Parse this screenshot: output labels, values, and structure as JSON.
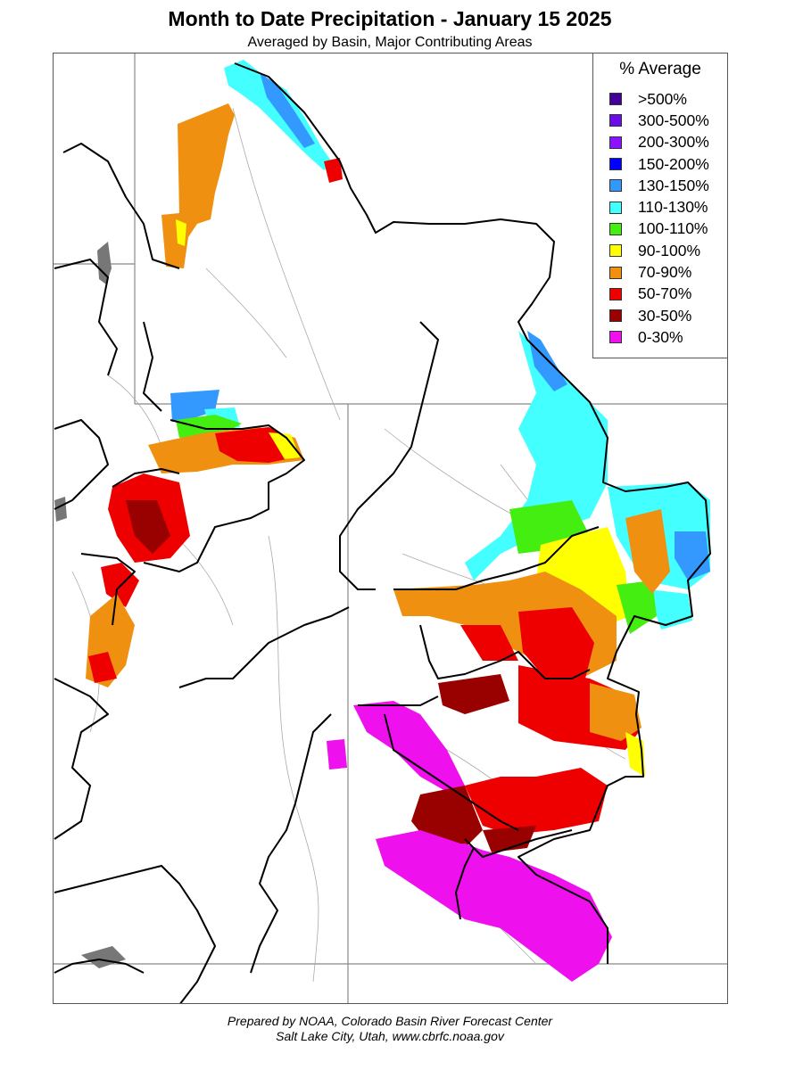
{
  "title": "Month to Date Precipitation - January 15 2025",
  "subtitle": "Averaged by Basin, Major Contributing Areas",
  "legend": {
    "title": "% Average",
    "items": [
      {
        "label": ">500%",
        "color": "#440099"
      },
      {
        "label": "300-500%",
        "color": "#6a0ee8"
      },
      {
        "label": "200-300%",
        "color": "#8a12ff"
      },
      {
        "label": "150-200%",
        "color": "#0000ff"
      },
      {
        "label": "130-150%",
        "color": "#3399ff"
      },
      {
        "label": "110-130%",
        "color": "#44ffff"
      },
      {
        "label": "100-110%",
        "color": "#44ee11"
      },
      {
        "label": "90-100%",
        "color": "#ffff00"
      },
      {
        "label": "70-90%",
        "color": "#f09010"
      },
      {
        "label": "50-70%",
        "color": "#ee0000"
      },
      {
        "label": "30-50%",
        "color": "#990000"
      },
      {
        "label": "0-30%",
        "color": "#ee11ee"
      }
    ]
  },
  "footer": {
    "line1": "Prepared by NOAA, Colorado Basin River Forecast Center",
    "line2": "Salt Lake City, Utah, www.cbrfc.noaa.gov"
  }
}
